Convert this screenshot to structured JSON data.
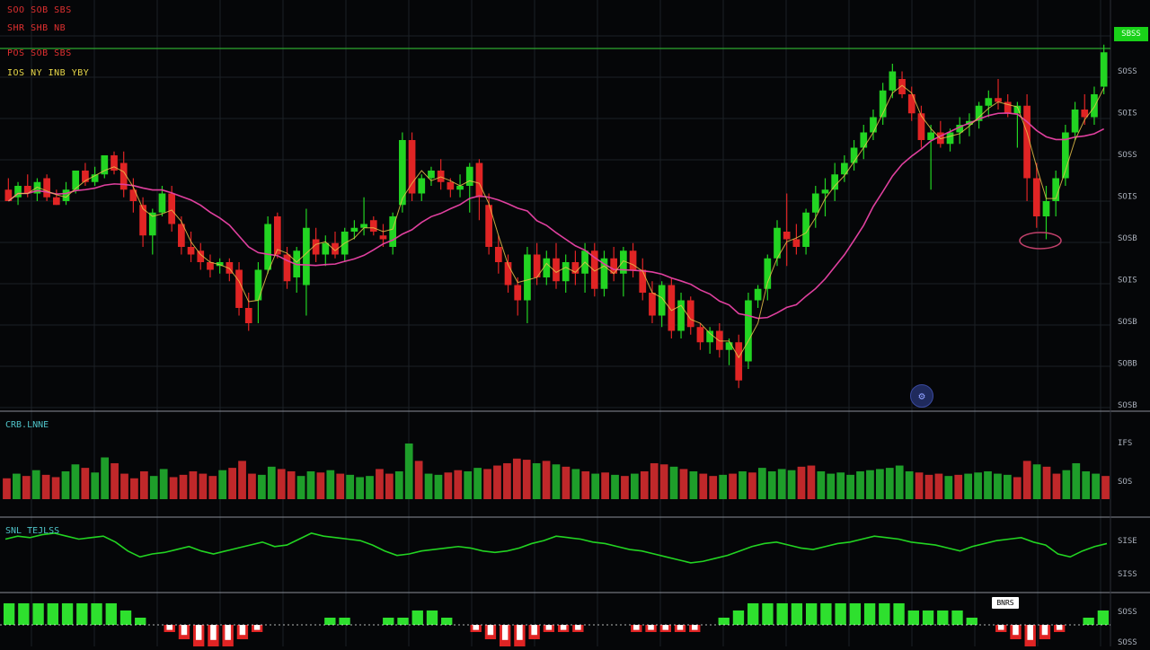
{
  "colors": {
    "background": "#050608",
    "grid": "#1c2026",
    "separator": "#8a8f99",
    "up": "#22d422",
    "down": "#e02424",
    "ma_long": "#e0409f",
    "ma_short": "#e8c24a",
    "level_line": "#2ea82e",
    "osc_line": "#22d422",
    "axis_text": "#aab0bb",
    "macd_pos": "#2ee02e",
    "macd_neg": "#e02424",
    "macd_signal": "#ffffff",
    "highlight": "#c0406a"
  },
  "legend": [
    {
      "text": "SOO SOB SBS",
      "color": "#e03030"
    },
    {
      "text": "SHR SHB NB",
      "color": "#e03030"
    },
    {
      "text": "POS SOB SBS",
      "color": "#e03030"
    },
    {
      "text": "IOS NY INB YBY",
      "color": "#e8d84a"
    }
  ],
  "panes": {
    "volume_label": "CRB.LNNE",
    "oscillator_label": "SNL TEJLSS"
  },
  "price_badge": "SBSS",
  "macd_badge": "BNRS",
  "settings_icon": "gear-icon",
  "chart_data": {
    "type": "candlestick",
    "title": "",
    "price_ticks": [
      "SOSS",
      "SOIS",
      "SOSS",
      "SOIS",
      "SOSB",
      "SOIS",
      "SOSB",
      "SOBB",
      "SOSB"
    ],
    "volume_ticks": [
      "IFS",
      "SOS"
    ],
    "oscillator_ticks": [
      "SISE",
      "SISS"
    ],
    "macd_ticks": [
      "SOSS",
      "SOSS"
    ],
    "ylim": [
      0,
      100
    ],
    "level_line": 92,
    "highlight_index": 84,
    "candles": [
      {
        "o": 55,
        "h": 58,
        "l": 52,
        "c": 52
      },
      {
        "o": 53,
        "h": 57,
        "l": 51,
        "c": 56
      },
      {
        "o": 56,
        "h": 59,
        "l": 53,
        "c": 54
      },
      {
        "o": 54,
        "h": 58,
        "l": 52,
        "c": 57
      },
      {
        "o": 58,
        "h": 59,
        "l": 52,
        "c": 53
      },
      {
        "o": 53,
        "h": 55,
        "l": 51,
        "c": 51
      },
      {
        "o": 52,
        "h": 57,
        "l": 51,
        "c": 55
      },
      {
        "o": 55,
        "h": 60,
        "l": 54,
        "c": 60
      },
      {
        "o": 60,
        "h": 62,
        "l": 56,
        "c": 57
      },
      {
        "o": 57,
        "h": 61,
        "l": 56,
        "c": 59
      },
      {
        "o": 59,
        "h": 64,
        "l": 58,
        "c": 64
      },
      {
        "o": 64,
        "h": 65,
        "l": 59,
        "c": 60
      },
      {
        "o": 62,
        "h": 65,
        "l": 53,
        "c": 55
      },
      {
        "o": 55,
        "h": 58,
        "l": 49,
        "c": 52
      },
      {
        "o": 51,
        "h": 53,
        "l": 40,
        "c": 43
      },
      {
        "o": 43,
        "h": 50,
        "l": 38,
        "c": 49
      },
      {
        "o": 49,
        "h": 56,
        "l": 48,
        "c": 54
      },
      {
        "o": 54,
        "h": 56,
        "l": 44,
        "c": 46
      },
      {
        "o": 46,
        "h": 48,
        "l": 38,
        "c": 40
      },
      {
        "o": 40,
        "h": 44,
        "l": 36,
        "c": 38
      },
      {
        "o": 39,
        "h": 41,
        "l": 34,
        "c": 36
      },
      {
        "o": 36,
        "h": 38,
        "l": 32,
        "c": 34
      },
      {
        "o": 35,
        "h": 37,
        "l": 33,
        "c": 36
      },
      {
        "o": 36,
        "h": 37,
        "l": 31,
        "c": 33
      },
      {
        "o": 34,
        "h": 36,
        "l": 22,
        "c": 24
      },
      {
        "o": 24,
        "h": 28,
        "l": 18,
        "c": 20
      },
      {
        "o": 26,
        "h": 36,
        "l": 20,
        "c": 34
      },
      {
        "o": 34,
        "h": 48,
        "l": 33,
        "c": 46
      },
      {
        "o": 48,
        "h": 49,
        "l": 37,
        "c": 38
      },
      {
        "o": 38,
        "h": 40,
        "l": 29,
        "c": 31
      },
      {
        "o": 32,
        "h": 40,
        "l": 28,
        "c": 39
      },
      {
        "o": 30,
        "h": 50,
        "l": 22,
        "c": 45
      },
      {
        "o": 42,
        "h": 45,
        "l": 36,
        "c": 38
      },
      {
        "o": 38,
        "h": 43,
        "l": 35,
        "c": 41
      },
      {
        "o": 41,
        "h": 44,
        "l": 37,
        "c": 38
      },
      {
        "o": 38,
        "h": 45,
        "l": 36,
        "c": 44
      },
      {
        "o": 44,
        "h": 47,
        "l": 42,
        "c": 45
      },
      {
        "o": 45,
        "h": 53,
        "l": 43,
        "c": 46
      },
      {
        "o": 47,
        "h": 48,
        "l": 43,
        "c": 44
      },
      {
        "o": 43,
        "h": 46,
        "l": 40,
        "c": 42
      },
      {
        "o": 40,
        "h": 49,
        "l": 38,
        "c": 48
      },
      {
        "o": 51,
        "h": 70,
        "l": 49,
        "c": 68
      },
      {
        "o": 68,
        "h": 70,
        "l": 52,
        "c": 54
      },
      {
        "o": 54,
        "h": 59,
        "l": 52,
        "c": 58
      },
      {
        "o": 58,
        "h": 61,
        "l": 56,
        "c": 60
      },
      {
        "o": 60,
        "h": 63,
        "l": 55,
        "c": 57
      },
      {
        "o": 57,
        "h": 58,
        "l": 53,
        "c": 55
      },
      {
        "o": 55,
        "h": 59,
        "l": 53,
        "c": 56
      },
      {
        "o": 56,
        "h": 62,
        "l": 49,
        "c": 61
      },
      {
        "o": 62,
        "h": 63,
        "l": 47,
        "c": 53
      },
      {
        "o": 51,
        "h": 54,
        "l": 38,
        "c": 40
      },
      {
        "o": 40,
        "h": 43,
        "l": 33,
        "c": 36
      },
      {
        "o": 36,
        "h": 38,
        "l": 28,
        "c": 30
      },
      {
        "o": 30,
        "h": 32,
        "l": 22,
        "c": 26
      },
      {
        "o": 26,
        "h": 40,
        "l": 20,
        "c": 38
      },
      {
        "o": 38,
        "h": 41,
        "l": 30,
        "c": 32
      },
      {
        "o": 32,
        "h": 39,
        "l": 30,
        "c": 37
      },
      {
        "o": 37,
        "h": 41,
        "l": 29,
        "c": 31
      },
      {
        "o": 31,
        "h": 38,
        "l": 28,
        "c": 36
      },
      {
        "o": 36,
        "h": 39,
        "l": 30,
        "c": 33
      },
      {
        "o": 33,
        "h": 41,
        "l": 28,
        "c": 39
      },
      {
        "o": 39,
        "h": 41,
        "l": 27,
        "c": 29
      },
      {
        "o": 29,
        "h": 39,
        "l": 27,
        "c": 37
      },
      {
        "o": 37,
        "h": 40,
        "l": 31,
        "c": 33
      },
      {
        "o": 33,
        "h": 40,
        "l": 27,
        "c": 39
      },
      {
        "o": 39,
        "h": 41,
        "l": 32,
        "c": 34
      },
      {
        "o": 34,
        "h": 37,
        "l": 26,
        "c": 28
      },
      {
        "o": 28,
        "h": 31,
        "l": 20,
        "c": 22
      },
      {
        "o": 22,
        "h": 31,
        "l": 19,
        "c": 30
      },
      {
        "o": 30,
        "h": 32,
        "l": 16,
        "c": 18
      },
      {
        "o": 18,
        "h": 28,
        "l": 16,
        "c": 26
      },
      {
        "o": 26,
        "h": 27,
        "l": 17,
        "c": 19
      },
      {
        "o": 19,
        "h": 20,
        "l": 13,
        "c": 15
      },
      {
        "o": 15,
        "h": 19,
        "l": 12,
        "c": 18
      },
      {
        "o": 18,
        "h": 20,
        "l": 11,
        "c": 13
      },
      {
        "o": 13,
        "h": 16,
        "l": 9,
        "c": 15
      },
      {
        "o": 15,
        "h": 17,
        "l": 3,
        "c": 5
      },
      {
        "o": 10,
        "h": 28,
        "l": 8,
        "c": 26
      },
      {
        "o": 26,
        "h": 30,
        "l": 24,
        "c": 29
      },
      {
        "o": 29,
        "h": 38,
        "l": 26,
        "c": 37
      },
      {
        "o": 37,
        "h": 47,
        "l": 35,
        "c": 45
      },
      {
        "o": 44,
        "h": 54,
        "l": 35,
        "c": 42
      },
      {
        "o": 42,
        "h": 46,
        "l": 38,
        "c": 40
      },
      {
        "o": 40,
        "h": 50,
        "l": 38,
        "c": 49
      },
      {
        "o": 49,
        "h": 56,
        "l": 45,
        "c": 54
      },
      {
        "o": 54,
        "h": 58,
        "l": 48,
        "c": 55
      },
      {
        "o": 55,
        "h": 62,
        "l": 52,
        "c": 59
      },
      {
        "o": 59,
        "h": 64,
        "l": 57,
        "c": 62
      },
      {
        "o": 62,
        "h": 68,
        "l": 60,
        "c": 66
      },
      {
        "o": 66,
        "h": 72,
        "l": 63,
        "c": 70
      },
      {
        "o": 70,
        "h": 76,
        "l": 68,
        "c": 74
      },
      {
        "o": 74,
        "h": 83,
        "l": 72,
        "c": 81
      },
      {
        "o": 81,
        "h": 88,
        "l": 79,
        "c": 86
      },
      {
        "o": 84,
        "h": 86,
        "l": 79,
        "c": 80
      },
      {
        "o": 80,
        "h": 82,
        "l": 73,
        "c": 75
      },
      {
        "o": 75,
        "h": 77,
        "l": 66,
        "c": 68
      },
      {
        "o": 68,
        "h": 72,
        "l": 55,
        "c": 70
      },
      {
        "o": 70,
        "h": 73,
        "l": 66,
        "c": 67
      },
      {
        "o": 67,
        "h": 71,
        "l": 65,
        "c": 70
      },
      {
        "o": 70,
        "h": 74,
        "l": 67,
        "c": 72
      },
      {
        "o": 72,
        "h": 75,
        "l": 69,
        "c": 73
      },
      {
        "o": 73,
        "h": 78,
        "l": 71,
        "c": 77
      },
      {
        "o": 77,
        "h": 81,
        "l": 74,
        "c": 79
      },
      {
        "o": 79,
        "h": 84,
        "l": 76,
        "c": 78
      },
      {
        "o": 78,
        "h": 80,
        "l": 74,
        "c": 75
      },
      {
        "o": 75,
        "h": 78,
        "l": 66,
        "c": 77
      },
      {
        "o": 77,
        "h": 80,
        "l": 52,
        "c": 58
      },
      {
        "o": 58,
        "h": 62,
        "l": 45,
        "c": 48
      },
      {
        "o": 48,
        "h": 56,
        "l": 42,
        "c": 52
      },
      {
        "o": 52,
        "h": 60,
        "l": 48,
        "c": 58
      },
      {
        "o": 58,
        "h": 72,
        "l": 56,
        "c": 70
      },
      {
        "o": 70,
        "h": 78,
        "l": 68,
        "c": 76
      },
      {
        "o": 76,
        "h": 80,
        "l": 72,
        "c": 74
      },
      {
        "o": 74,
        "h": 82,
        "l": 72,
        "c": 80
      },
      {
        "o": 82,
        "h": 93,
        "l": 80,
        "c": 91
      }
    ],
    "volume": [
      18,
      22,
      20,
      25,
      21,
      19,
      24,
      30,
      27,
      23,
      36,
      31,
      22,
      18,
      24,
      20,
      26,
      19,
      21,
      24,
      22,
      20,
      25,
      27,
      33,
      22,
      21,
      28,
      26,
      24,
      20,
      24,
      23,
      25,
      22,
      21,
      19,
      20,
      26,
      22,
      24,
      48,
      33,
      22,
      21,
      23,
      25,
      24,
      27,
      26,
      29,
      31,
      35,
      34,
      31,
      33,
      30,
      28,
      26,
      24,
      22,
      23,
      21,
      20,
      22,
      24,
      31,
      30,
      28,
      26,
      24,
      22,
      20,
      21,
      22,
      24,
      23,
      27,
      24,
      26,
      25,
      28,
      29,
      24,
      22,
      23,
      21,
      24,
      25,
      26,
      27,
      29,
      24,
      23,
      21,
      22,
      20,
      21,
      22,
      23,
      24,
      22,
      21,
      19,
      33,
      30,
      28,
      22,
      25,
      31,
      24,
      22,
      20
    ],
    "oscillator": [
      60,
      62,
      61,
      63,
      64,
      62,
      60,
      61,
      62,
      58,
      52,
      48,
      50,
      51,
      53,
      55,
      52,
      50,
      52,
      54,
      56,
      58,
      55,
      56,
      60,
      64,
      62,
      61,
      60,
      59,
      56,
      52,
      49,
      50,
      52,
      53,
      54,
      55,
      54,
      52,
      51,
      52,
      54,
      57,
      59,
      62,
      61,
      60,
      58,
      57,
      55,
      53,
      52,
      50,
      48,
      46,
      44,
      45,
      47,
      49,
      52,
      55,
      57,
      58,
      56,
      54,
      53,
      55,
      57,
      58,
      60,
      62,
      61,
      60,
      58,
      57,
      56,
      54,
      52,
      55,
      57,
      59,
      60,
      61,
      58,
      56,
      50,
      48,
      52,
      55,
      57
    ],
    "macd": [
      3,
      3,
      3,
      3,
      3,
      3,
      3,
      3,
      2,
      1,
      0,
      -1,
      -2,
      -3,
      -3,
      -3,
      -2,
      -1,
      0,
      0,
      0,
      0,
      1,
      1,
      0,
      0,
      1,
      1,
      2,
      2,
      1,
      0,
      -1,
      -2,
      -3,
      -3,
      -2,
      -1,
      -1,
      -1,
      0,
      0,
      0,
      -1,
      -1,
      -1,
      -1,
      -1,
      0,
      1,
      2,
      3,
      3,
      3,
      3,
      3,
      3,
      3,
      3,
      3,
      3,
      3,
      2,
      2,
      2,
      2,
      1,
      0,
      -1,
      -2,
      -3,
      -2,
      -1,
      0,
      1,
      2
    ]
  }
}
